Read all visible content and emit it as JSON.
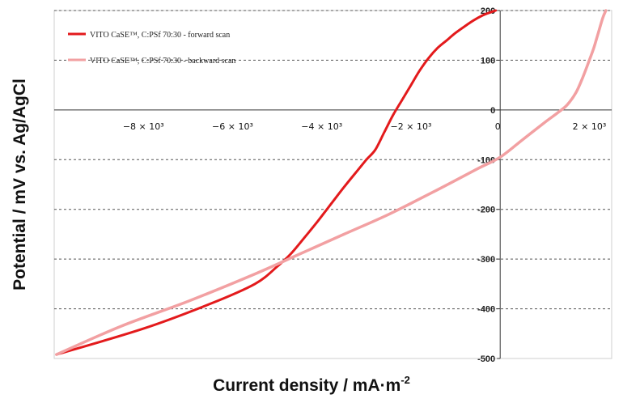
{
  "chart_data": {
    "type": "line",
    "title": "",
    "xlabel": "Current density / mA·m",
    "xlabel_sup": "-2",
    "ylabel": "Potential / mV vs. Ag/AgCl",
    "xlim": [
      -10000,
      2500
    ],
    "ylim": [
      -500,
      200
    ],
    "y_ticks": [
      {
        "value": 200,
        "label": "200"
      },
      {
        "value": 100,
        "label": "100"
      },
      {
        "value": 0,
        "label": "0"
      },
      {
        "value": -100,
        "label": "-100"
      },
      {
        "value": -200,
        "label": "-200"
      },
      {
        "value": -300,
        "label": "-300"
      },
      {
        "value": -400,
        "label": "-400"
      },
      {
        "value": -500,
        "label": "-500"
      }
    ],
    "x_ticks": [
      {
        "value": -8000,
        "label": "−8 × 10³"
      },
      {
        "value": -6000,
        "label": "−6 × 10³"
      },
      {
        "value": -4000,
        "label": "−4 × 10³"
      },
      {
        "value": -2000,
        "label": "−2 × 10³"
      },
      {
        "value": 0,
        "label": "0"
      },
      {
        "value": 2000,
        "label": "2 × 10³"
      }
    ],
    "grid": "horizontal dashed",
    "legend_position": "top-left",
    "series": [
      {
        "name": "VITO CaSE™, C:PSf 70:30 - forward scan",
        "color": "#e31a1c",
        "x": [
          -9950,
          -8000,
          -6500,
          -5500,
          -5000,
          -4700,
          -4400,
          -4100,
          -3800,
          -3500,
          -3200,
          -3000,
          -2800,
          -2600,
          -2400,
          -2200,
          -2000,
          -1800,
          -1600,
          -1400,
          -1200,
          -1000,
          -800,
          -600,
          -400,
          -200,
          -100
        ],
        "y": [
          -492,
          -440,
          -390,
          -350,
          -315,
          -290,
          -258,
          -225,
          -190,
          -155,
          -122,
          -100,
          -80,
          -45,
          -10,
          20,
          50,
          80,
          105,
          125,
          140,
          155,
          168,
          180,
          190,
          197,
          200
        ]
      },
      {
        "name": "VITO CaSE™, C:PSf 70:30 - backward scan",
        "color": "#f2a0a2",
        "x": [
          -9950,
          -8500,
          -7000,
          -5500,
          -4500,
          -3500,
          -2500,
          -1500,
          -500,
          0,
          500,
          1000,
          1300,
          1500,
          1700,
          1850,
          2000,
          2100,
          2200,
          2300,
          2370
        ],
        "y": [
          -492,
          -435,
          -385,
          -330,
          -290,
          -250,
          -210,
          -165,
          -118,
          -95,
          -60,
          -25,
          -5,
          10,
          35,
          65,
          100,
          125,
          155,
          185,
          200
        ]
      }
    ]
  }
}
